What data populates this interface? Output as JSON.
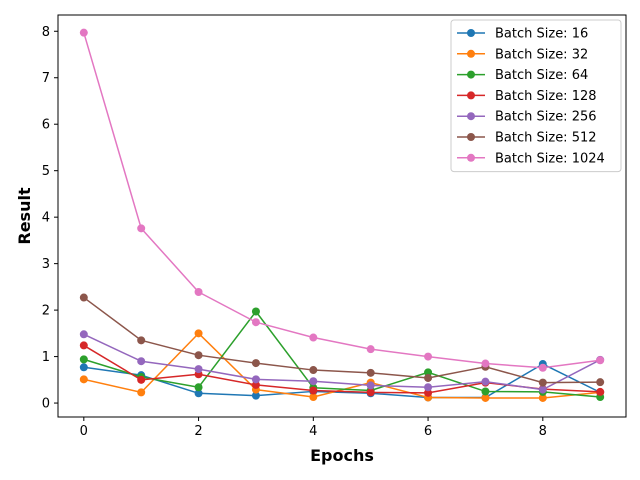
{
  "chart_data": {
    "type": "line",
    "title": "",
    "xlabel": "Epochs",
    "ylabel": "Result",
    "xlim": [
      -0.45,
      9.45
    ],
    "ylim": [
      -0.3,
      8.35
    ],
    "xticks": [
      0,
      2,
      4,
      6,
      8
    ],
    "yticks": [
      0,
      1,
      2,
      3,
      4,
      5,
      6,
      7,
      8
    ],
    "grid": false,
    "legend_position": "top-right",
    "x": [
      0,
      1,
      2,
      3,
      4,
      5,
      6,
      7,
      8,
      9
    ],
    "series": [
      {
        "name": "Batch Size: 16",
        "color": "#1f77b4",
        "values": [
          0.77,
          0.6,
          0.21,
          0.16,
          0.25,
          0.21,
          0.12,
          0.12,
          0.84,
          0.23
        ]
      },
      {
        "name": "Batch Size: 32",
        "color": "#ff7f0e",
        "values": [
          0.51,
          0.23,
          1.5,
          0.29,
          0.13,
          0.44,
          0.12,
          0.11,
          0.11,
          0.23
        ]
      },
      {
        "name": "Batch Size: 64",
        "color": "#2ca02c",
        "values": [
          0.94,
          0.56,
          0.34,
          1.97,
          0.33,
          0.27,
          0.66,
          0.25,
          0.24,
          0.13
        ]
      },
      {
        "name": "Batch Size: 128",
        "color": "#d62728",
        "values": [
          1.24,
          0.5,
          0.62,
          0.39,
          0.27,
          0.23,
          0.22,
          0.44,
          0.3,
          0.24
        ]
      },
      {
        "name": "Batch Size: 256",
        "color": "#9467bd",
        "values": [
          1.48,
          0.9,
          0.73,
          0.51,
          0.47,
          0.38,
          0.34,
          0.46,
          0.29,
          0.93
        ]
      },
      {
        "name": "Batch Size: 512",
        "color": "#8c564b",
        "values": [
          2.27,
          1.35,
          1.03,
          0.86,
          0.71,
          0.65,
          0.54,
          0.78,
          0.44,
          0.45
        ]
      },
      {
        "name": "Batch Size: 1024",
        "color": "#e377c2",
        "values": [
          7.97,
          3.76,
          2.39,
          1.74,
          1.41,
          1.16,
          1.0,
          0.85,
          0.76,
          0.92
        ]
      }
    ]
  }
}
